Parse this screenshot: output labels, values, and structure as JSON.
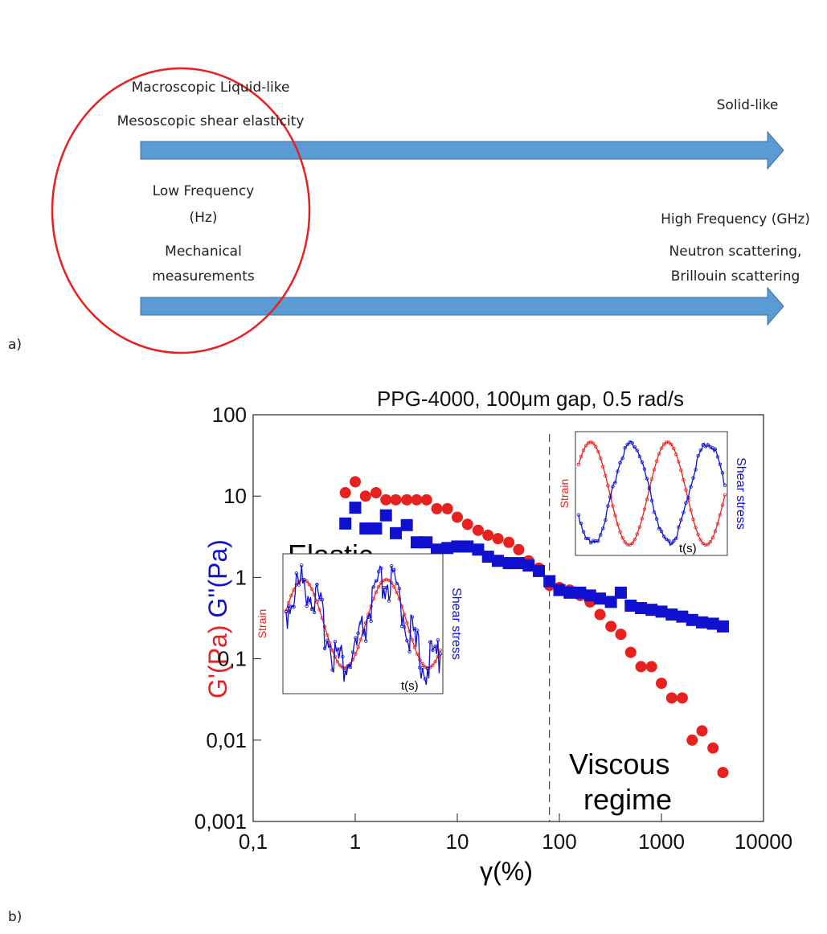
{
  "diagram": {
    "panel_a": "a)",
    "panel_b": "b)",
    "texts": [
      "Macroscopic Liquid-like",
      "Mesoscopic shear elasticity",
      "Solid-like",
      "Low Frequency",
      "(Hz)",
      "High Frequency (GHz)",
      "Mechanical",
      "measurements",
      "Neutron scattering,",
      "Brillouin scattering"
    ]
  },
  "chart_data": {
    "type": "scatter",
    "title": "PPG-4000, 100μm gap, 0.5 rad/s",
    "x_label": "γ(%)",
    "log_x": true,
    "log_y": true,
    "xlim": [
      0.1,
      10000
    ],
    "ylim": [
      0.001,
      100
    ],
    "xticks": [
      {
        "value": 0.1,
        "label": "0,1"
      },
      1,
      10,
      100,
      1000,
      10000
    ],
    "yticks": [
      {
        "value": 0.001,
        "label": "0,001"
      },
      {
        "value": 0.01,
        "label": "0,01"
      },
      {
        "value": 0.1,
        "label": "0,1"
      },
      1,
      10,
      100
    ],
    "vline": 80,
    "series": [
      {
        "name": "G'(Pa)",
        "color": "#e8201e",
        "marker": "circle",
        "x": [
          0.8,
          1,
          1.26,
          1.6,
          2,
          2.5,
          3.2,
          4,
          5,
          6.3,
          8,
          10,
          12.6,
          16,
          20,
          25,
          32,
          40,
          50,
          63,
          80,
          100,
          126,
          160,
          200,
          250,
          320,
          400,
          500,
          630,
          800,
          1000,
          1260,
          1600,
          2000,
          2500,
          3200,
          4000
        ],
        "values": [
          11,
          15,
          10,
          11,
          9,
          9,
          9,
          9,
          9,
          7,
          7,
          5.5,
          4.5,
          3.8,
          3.3,
          3,
          2.7,
          2.2,
          1.6,
          1.3,
          0.8,
          0.75,
          0.7,
          0.6,
          0.5,
          0.35,
          0.25,
          0.2,
          0.12,
          0.08,
          0.08,
          0.05,
          0.033,
          0.033,
          0.01,
          0.013,
          0.008,
          0.004
        ]
      },
      {
        "name": "G''(Pa)",
        "color": "#1010d0",
        "marker": "square",
        "x": [
          0.8,
          1,
          1.26,
          1.6,
          2,
          2.5,
          3.2,
          4,
          5,
          6.3,
          8,
          10,
          12.6,
          16,
          20,
          25,
          32,
          40,
          50,
          63,
          80,
          100,
          126,
          160,
          200,
          250,
          320,
          400,
          500,
          630,
          800,
          1000,
          1260,
          1600,
          2000,
          2500,
          3200,
          4000
        ],
        "values": [
          4.6,
          7.2,
          4,
          4,
          5.8,
          3.5,
          4.4,
          2.7,
          2.7,
          2.2,
          2.3,
          2.4,
          2.4,
          2.2,
          1.8,
          1.6,
          1.5,
          1.5,
          1.4,
          1.2,
          0.9,
          0.7,
          0.65,
          0.65,
          0.6,
          0.55,
          0.5,
          0.65,
          0.45,
          0.42,
          0.4,
          0.38,
          0.35,
          0.33,
          0.3,
          0.28,
          0.27,
          0.25
        ]
      }
    ],
    "annotations": [
      "Elastic",
      "regime",
      "Viscous",
      "regime"
    ],
    "insets": [
      {
        "y_label": "Strain",
        "y2_label": "Shear stress",
        "x_label": "t(s)"
      },
      {
        "y_label": "Strain",
        "y2_label": "Shear stress",
        "x_label": "t(s)"
      }
    ]
  }
}
